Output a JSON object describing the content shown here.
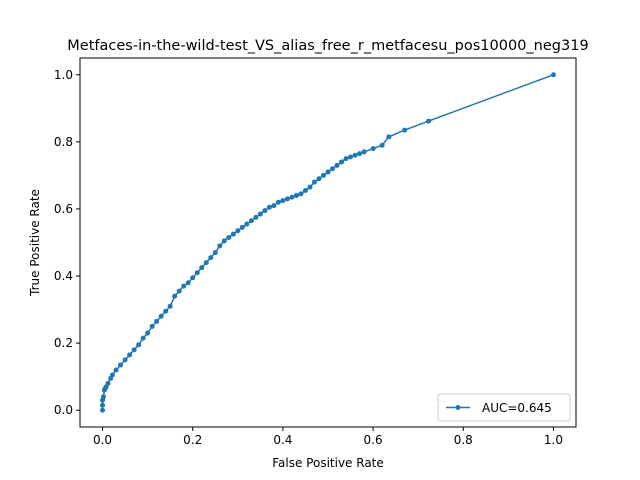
{
  "chart_data": {
    "type": "line",
    "title": "Metfaces-in-the-wild-test_VS_alias_free_r_metfacesu_pos10000_neg319",
    "xlabel": "False Positive Rate",
    "ylabel": "True Positive Rate",
    "xlim": [
      -0.05,
      1.05
    ],
    "ylim": [
      -0.05,
      1.05
    ],
    "xticks": [
      "0.0",
      "0.2",
      "0.4",
      "0.6",
      "0.8",
      "1.0"
    ],
    "yticks": [
      "0.0",
      "0.2",
      "0.4",
      "0.6",
      "0.8",
      "1.0"
    ],
    "grid": false,
    "legend_position": "lower right",
    "series": [
      {
        "name": "AUC=0.645",
        "color": "#1f77b4",
        "marker": "circle",
        "x": [
          0.0,
          0.0,
          0.0,
          0.002,
          0.004,
          0.006,
          0.008,
          0.012,
          0.018,
          0.022,
          0.03,
          0.04,
          0.05,
          0.06,
          0.07,
          0.08,
          0.09,
          0.1,
          0.11,
          0.12,
          0.13,
          0.14,
          0.15,
          0.16,
          0.17,
          0.18,
          0.19,
          0.2,
          0.21,
          0.22,
          0.23,
          0.24,
          0.25,
          0.26,
          0.27,
          0.28,
          0.29,
          0.3,
          0.31,
          0.32,
          0.33,
          0.34,
          0.35,
          0.36,
          0.37,
          0.38,
          0.39,
          0.4,
          0.41,
          0.42,
          0.43,
          0.44,
          0.45,
          0.46,
          0.47,
          0.48,
          0.49,
          0.5,
          0.51,
          0.52,
          0.53,
          0.54,
          0.55,
          0.56,
          0.57,
          0.58,
          0.6,
          0.62,
          0.635,
          0.67,
          0.723,
          1.0
        ],
        "y": [
          0.0,
          0.015,
          0.03,
          0.04,
          0.06,
          0.065,
          0.07,
          0.08,
          0.095,
          0.105,
          0.12,
          0.135,
          0.15,
          0.165,
          0.18,
          0.195,
          0.215,
          0.23,
          0.25,
          0.265,
          0.28,
          0.295,
          0.31,
          0.34,
          0.355,
          0.37,
          0.38,
          0.395,
          0.41,
          0.425,
          0.44,
          0.455,
          0.47,
          0.49,
          0.505,
          0.515,
          0.525,
          0.535,
          0.545,
          0.555,
          0.565,
          0.575,
          0.585,
          0.595,
          0.605,
          0.61,
          0.62,
          0.625,
          0.63,
          0.635,
          0.64,
          0.645,
          0.655,
          0.665,
          0.68,
          0.69,
          0.7,
          0.71,
          0.72,
          0.73,
          0.74,
          0.75,
          0.755,
          0.76,
          0.765,
          0.77,
          0.78,
          0.79,
          0.815,
          0.835,
          0.862,
          1.0
        ]
      }
    ]
  }
}
